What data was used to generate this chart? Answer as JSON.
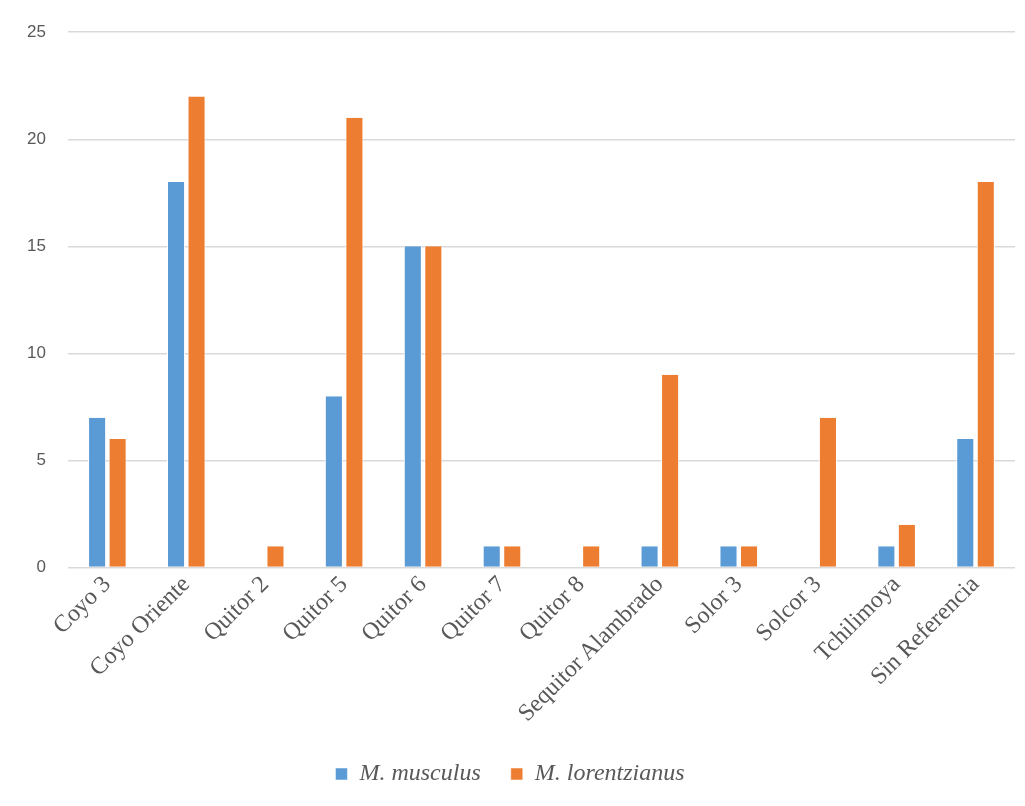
{
  "chart_data": {
    "type": "bar",
    "categories": [
      "Coyo 3",
      "Coyo Oriente",
      "Quitor 2",
      "Quitor 5",
      "Quitor 6",
      "Quitor 7",
      "Quitor 8",
      "Sequitor Alambrado",
      "Solor 3",
      "Solcor 3",
      "Tchilimoya",
      "Sin Referencia"
    ],
    "series": [
      {
        "name": "M. musculus",
        "color": "#5b9bd5",
        "values": [
          7,
          18,
          0,
          8,
          15,
          1,
          0,
          1,
          1,
          0,
          1,
          6
        ]
      },
      {
        "name": "M. lorentzianus",
        "color": "#ed7d31",
        "values": [
          6,
          22,
          1,
          21,
          15,
          1,
          1,
          9,
          1,
          7,
          2,
          18
        ]
      }
    ],
    "ylim": [
      0,
      25
    ],
    "yticks": [
      0,
      5,
      10,
      15,
      20,
      25
    ],
    "grid": "y",
    "legend": "bottom"
  }
}
